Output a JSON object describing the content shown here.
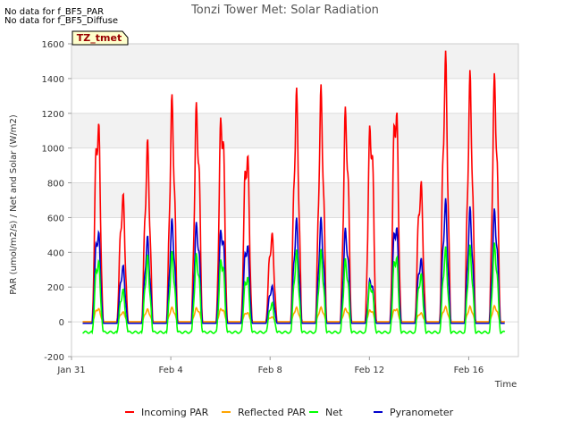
{
  "notes": [
    "No data for f_BF5_PAR",
    "No data for f_BF5_Diffuse"
  ],
  "badge": "TZ_tmet",
  "chart_data": {
    "type": "line",
    "title": "Tonzi Tower Met: Solar Radiation",
    "xlabel": "Time",
    "ylabel": "PAR (umol/m2/s) / Net and Solar (W/m2)",
    "xlim": [
      0,
      18
    ],
    "ylim": [
      -200,
      1600
    ],
    "yticks": [
      -200,
      0,
      200,
      400,
      600,
      800,
      1000,
      1200,
      1400,
      1600
    ],
    "xticks": [
      {
        "x": 0,
        "label": "Jan 31"
      },
      {
        "x": 4,
        "label": "Feb 4"
      },
      {
        "x": 8,
        "label": "Feb 8"
      },
      {
        "x": 12,
        "label": "Feb 12"
      },
      {
        "x": 16,
        "label": "Feb 16"
      }
    ],
    "grid": true,
    "legend_position": "bottom",
    "series": [
      {
        "name": "Incoming PAR",
        "color": "#ff0000",
        "daily_peaks": [
          1280,
          770,
          1060,
          1320,
          1320,
          1320,
          1090,
          540,
          1360,
          1370,
          1280,
          1250,
          1395,
          860,
          1580,
          1450,
          1470
        ]
      },
      {
        "name": "Reflected PAR",
        "color": "#ffa500",
        "daily_peaks": [
          85,
          60,
          75,
          85,
          85,
          85,
          60,
          30,
          85,
          85,
          80,
          75,
          85,
          55,
          90,
          90,
          95
        ]
      },
      {
        "name": "Net",
        "color": "#00ff00",
        "daily_peaks": [
          400,
          200,
          390,
          410,
          415,
          410,
          300,
          120,
          420,
          420,
          380,
          250,
          440,
          300,
          440,
          445,
          470
        ],
        "night_value": -60
      },
      {
        "name": "Pyranometer",
        "color": "#0000cc",
        "daily_peaks": [
          580,
          340,
          500,
          600,
          600,
          595,
          500,
          220,
          605,
          605,
          560,
          270,
          630,
          390,
          720,
          665,
          670
        ]
      }
    ]
  }
}
